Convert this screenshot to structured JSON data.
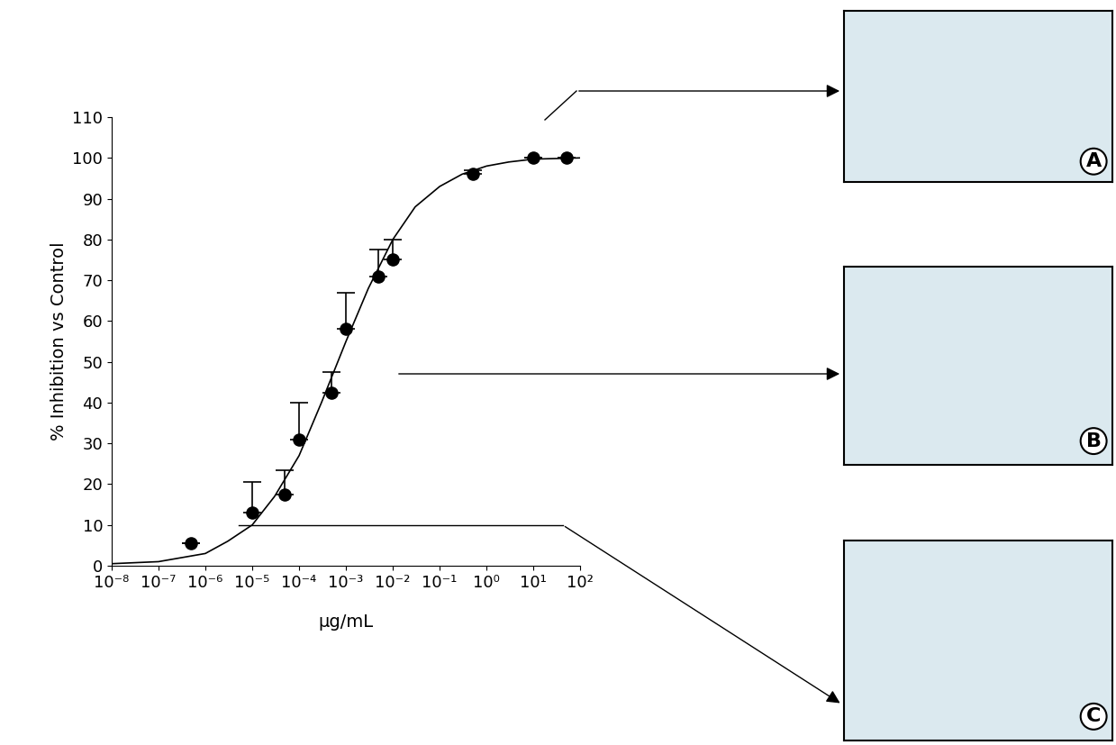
{
  "chart_data": {
    "type": "scatter",
    "log": "x",
    "color": "#000000",
    "xlabel": "µg/mL",
    "ylabel": "% Inhibition vs Control",
    "x": [
      5e-07,
      1e-05,
      5e-05,
      0.0001,
      0.0005,
      0.001,
      0.005,
      0.01,
      0.5,
      10.0,
      50.0
    ],
    "values": [
      5.5,
      13,
      17.5,
      31,
      42.5,
      58,
      71,
      75,
      96,
      100,
      100
    ],
    "error_upper": [
      null,
      7.5,
      6,
      9,
      5,
      9,
      6.5,
      5,
      1,
      null,
      null
    ],
    "fit": {
      "x": [
        1e-08,
        1e-07,
        1e-06,
        3e-06,
        1e-05,
        3e-05,
        0.0001,
        0.0003,
        0.001,
        0.003,
        0.01,
        0.03,
        0.1,
        0.3,
        1.0,
        3.0,
        10.0,
        100.0
      ],
      "values": [
        0.5,
        1,
        3,
        6,
        10,
        17,
        27,
        40,
        55,
        68,
        80,
        88,
        93,
        96,
        98,
        99,
        99.7,
        100
      ]
    },
    "xlim": [
      1e-08,
      100.0
    ],
    "xticks": [
      {
        "value": 1e-08,
        "label": "10⁻⁸"
      },
      {
        "value": 1e-07,
        "label": "10⁻⁷"
      },
      {
        "value": 1e-06,
        "label": "10⁻⁶"
      },
      {
        "value": 1e-05,
        "label": "10⁻⁵"
      },
      {
        "value": 0.0001,
        "label": "10⁻⁴"
      },
      {
        "value": 0.001,
        "label": "10⁻³"
      },
      {
        "value": 0.01,
        "label": "10⁻²"
      },
      {
        "value": 0.1,
        "label": "10⁻¹"
      },
      {
        "value": 1.0,
        "label": "10⁰"
      },
      {
        "value": 10.0,
        "label": "10¹"
      },
      {
        "value": 100.0,
        "label": "10²"
      }
    ],
    "ylim": [
      0,
      110
    ],
    "yticks": [
      0,
      10,
      20,
      30,
      40,
      50,
      60,
      70,
      80,
      90,
      100,
      110
    ],
    "panels": [
      "A",
      "B",
      "C"
    ]
  }
}
